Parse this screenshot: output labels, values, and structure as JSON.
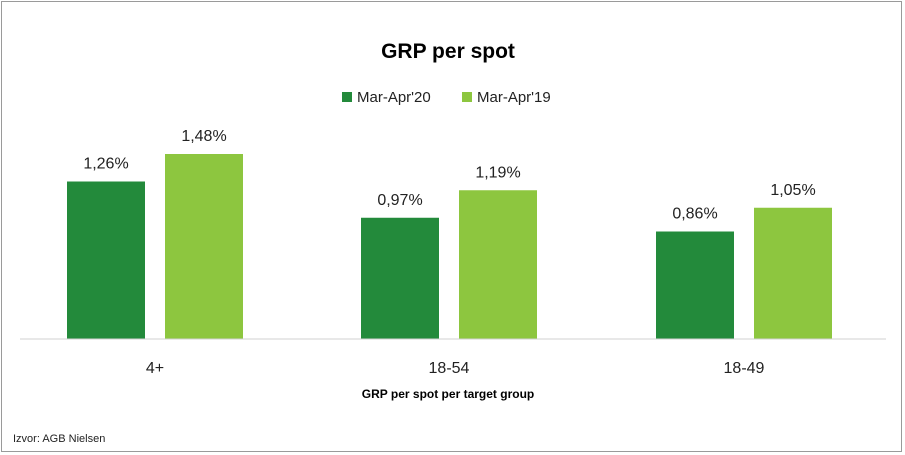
{
  "chart_data": {
    "type": "bar",
    "title": "GRP per spot",
    "xlabel": "GRP per spot per target group",
    "ylabel": "",
    "categories": [
      "4+",
      "18-54",
      "18-49"
    ],
    "series": [
      {
        "name": "Mar-Apr'20",
        "values": [
          1.26,
          0.97,
          0.86
        ],
        "labels": [
          "1,26%",
          "0,97%",
          "0,86%"
        ],
        "color": "#238a3b"
      },
      {
        "name": "Mar-Apr'19",
        "values": [
          1.48,
          1.19,
          1.05
        ],
        "labels": [
          "1,48%",
          "1,19%",
          "1,05%"
        ],
        "color": "#8dc63f"
      }
    ],
    "ylim": [
      0,
      1.5
    ],
    "grid": false,
    "legend_position": "top-center"
  },
  "source": "Izvor: AGB Nielsen"
}
